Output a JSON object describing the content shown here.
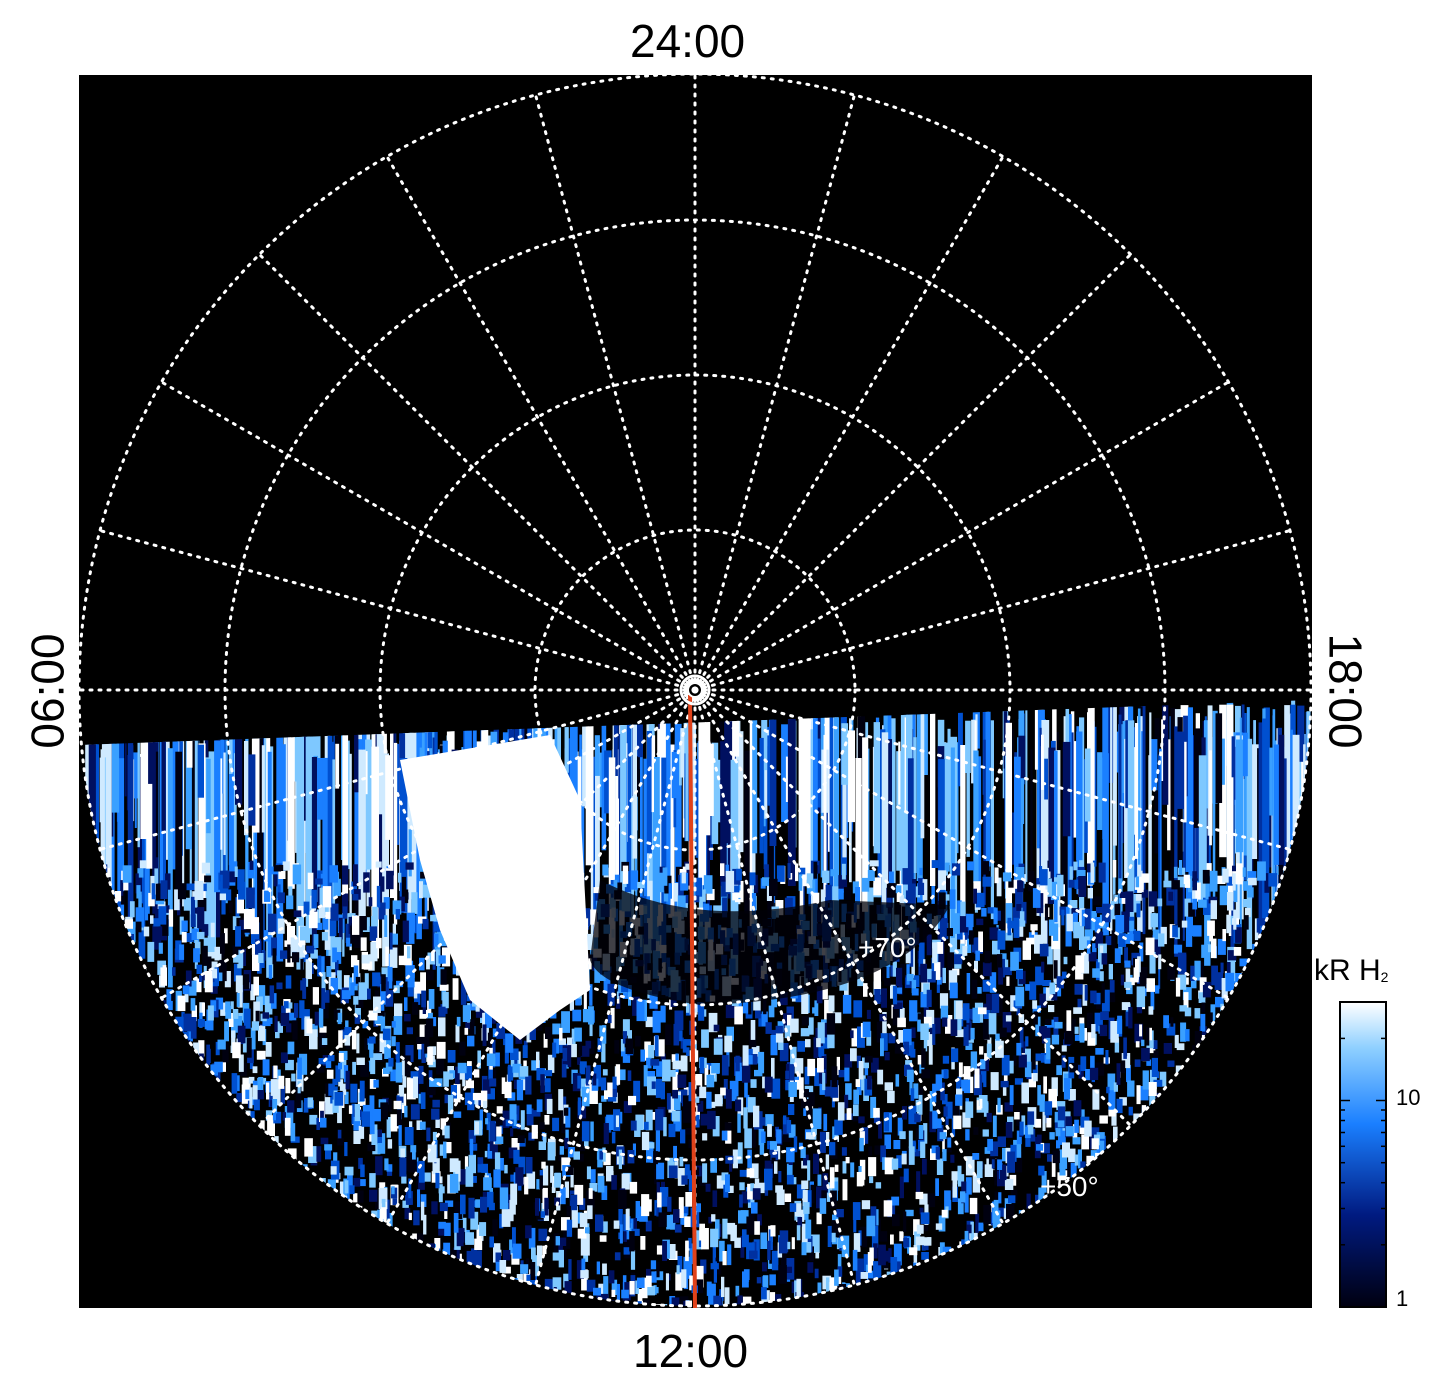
{
  "labels": {
    "top": "24:00",
    "bottom": "12:00",
    "left": "06:00",
    "right": "18:00"
  },
  "lat_labels": [
    "+70°",
    "+50°"
  ],
  "colorbar": {
    "title_main": "kR H",
    "title_sub": "2",
    "ticks": [
      {
        "label": "10",
        "value": 10
      },
      {
        "label": "1",
        "value": 1
      }
    ],
    "range": [
      1,
      30
    ],
    "scale": "log"
  },
  "colors": {
    "background": "#000000",
    "grid": "#ffffff",
    "meridian_line": "#e0421a",
    "cmap_low": "#000000",
    "cmap_mid": "#1a7fff",
    "cmap_high": "#ffffff"
  }
}
